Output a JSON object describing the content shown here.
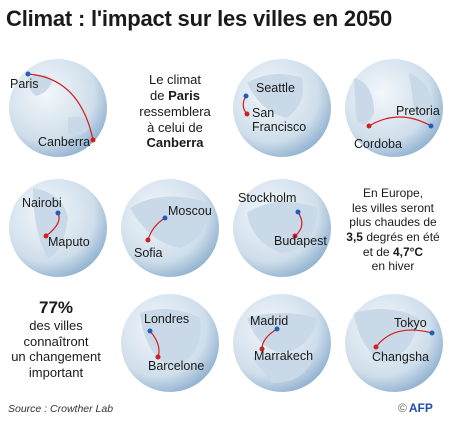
{
  "title": "Climat : l'impact sur les villes en 2050",
  "source": "Source : Crowther Lab",
  "logo": {
    "copyright": "©",
    "brand": "AFP"
  },
  "colors": {
    "blue_dot": "#1f5fbf",
    "red_dot": "#d21f1f",
    "globe_light": "#e9f1f8",
    "globe_dark": "#8fb0cf",
    "land": "#c9d9e8"
  },
  "pairs": [
    {
      "from": "Paris",
      "to": "Canberra"
    },
    {
      "from": "Seattle",
      "to": "San Francisco"
    },
    {
      "from": "Pretoria",
      "to": "Cordoba"
    },
    {
      "from": "Nairobi",
      "to": "Maputo"
    },
    {
      "from": "Moscou",
      "to": "Sofia"
    },
    {
      "from": "Stockholm",
      "to": "Budapest"
    },
    {
      "from": "Londres",
      "to": "Barcelone"
    },
    {
      "from": "Madrid",
      "to": "Marrakech"
    },
    {
      "from": "Tokyo",
      "to": "Changsha"
    }
  ],
  "intro": {
    "line1": "Le climat",
    "line2_pre": "de",
    "line2_city": "Paris",
    "line3": "ressemblera",
    "line4": "à celui de",
    "line5_city": "Canberra"
  },
  "europe": {
    "l1": "En Europe,",
    "l2": "les villes seront",
    "l3": "plus chaudes de",
    "l4_num": "3,5",
    "l4_rest": "degrés en été",
    "l5_pre": "et de",
    "l5_num": "4,7°C",
    "l6": "en hiver"
  },
  "stat": {
    "percent": "77%",
    "l1": "des villes",
    "l2": "connaîtront",
    "l3": "un changement",
    "l4": "important"
  }
}
